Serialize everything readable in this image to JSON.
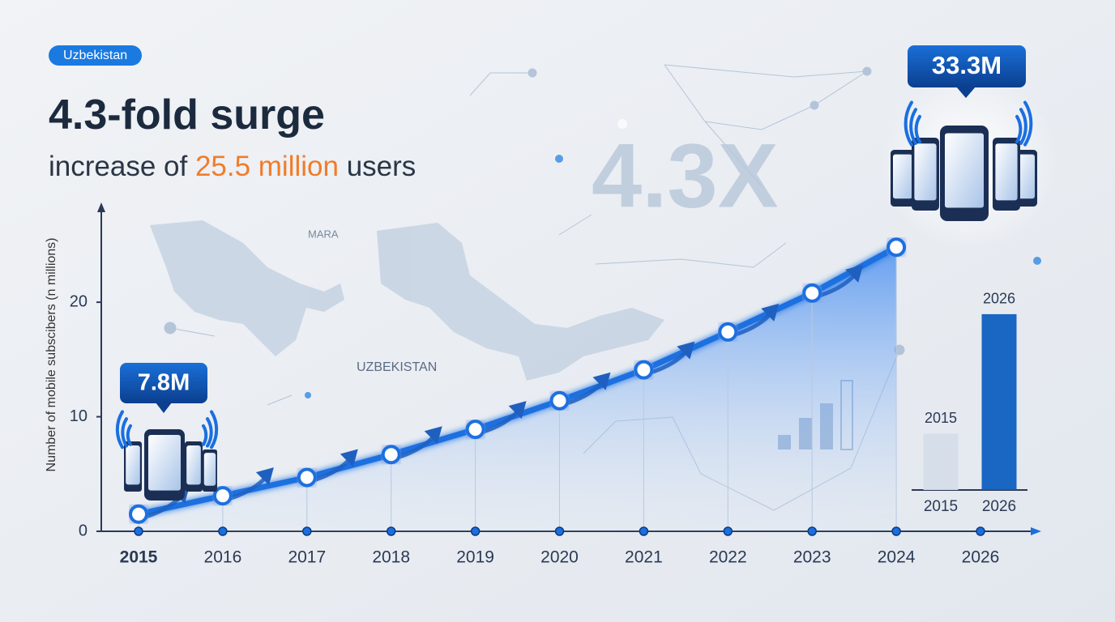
{
  "badge": "Uzbekistan",
  "header": {
    "title": "4.3-fold surge",
    "subtitle_pre": "increase of ",
    "subtitle_highlight": "25.5 million",
    "subtitle_post": " users"
  },
  "watermark": "4.3X",
  "map_labels": [
    "MARA",
    "UZBEKISTAN"
  ],
  "chart_data": [
    {
      "type": "line",
      "y_label": "Number of mobile subscibers (n millions)",
      "categories": [
        "2015",
        "2016",
        "2017",
        "2018",
        "2019",
        "2020",
        "2021",
        "2022",
        "2023",
        "2024",
        "2026"
      ],
      "values": [
        1.5,
        3.1,
        4.7,
        6.7,
        8.9,
        11.4,
        14.1,
        17.4,
        20.8,
        24.8,
        null
      ],
      "color": "#1a6fe0",
      "ylim": [
        0,
        28
      ],
      "yticks": [
        0,
        10,
        20
      ],
      "annotations": [
        {
          "text": "7.8M"
        },
        {
          "text": "33.3M"
        }
      ]
    },
    {
      "type": "bar",
      "categories": [
        "2015",
        "2026"
      ],
      "values": [
        4.9,
        15.3
      ],
      "colors": [
        "#d5dde8",
        "#0e5fc0"
      ],
      "ylim": [
        0,
        16
      ]
    }
  ]
}
